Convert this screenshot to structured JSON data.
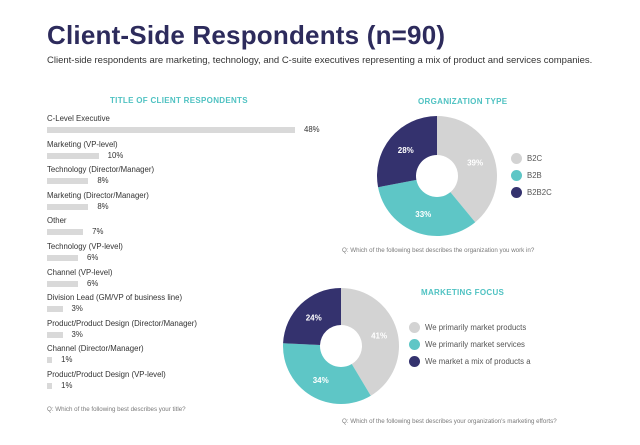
{
  "header": {
    "title": "Client-Side Respondents (n=90)",
    "subtitle": "Client-side respondents are marketing, technology, and C-suite executives representing a mix of product and services companies."
  },
  "colors": {
    "gray": "#d3d3d3",
    "teal": "#5ec6c6",
    "navy": "#34326e",
    "title": "#2d2b5c",
    "accent": "#4fc2c2"
  },
  "chart_data": [
    {
      "type": "bar",
      "title": "TITLE OF CLIENT RESPONDENTS",
      "categories": [
        "C-Level Executive",
        "Marketing (VP-level)",
        "Technology (Director/Manager)",
        "Marketing (Director/Manager)",
        "Other",
        "Technology (VP-level)",
        "Channel (VP-level)",
        "Division Lead (GM/VP of business line)",
        "Product/Product Design (Director/Manager)",
        "Channel (Director/Manager)",
        "Product/Product Design (VP-level)"
      ],
      "values": [
        48,
        10,
        8,
        8,
        7,
        6,
        6,
        3,
        3,
        1,
        1
      ],
      "value_labels": [
        "48%",
        "10%",
        "8%",
        "8%",
        "7%",
        "6%",
        "6%",
        "3%",
        "3%",
        "1%",
        "1%"
      ],
      "xlim": [
        0,
        48
      ],
      "question": "Q: Which of the following best describes your title?"
    },
    {
      "type": "pie",
      "title": "ORGANIZATION TYPE",
      "labels": [
        "B2C",
        "B2B",
        "B2B2C"
      ],
      "values": [
        39,
        33,
        28
      ],
      "value_labels": [
        "39%",
        "33%",
        "28%"
      ],
      "colors": [
        "#d3d3d3",
        "#5ec6c6",
        "#34326e"
      ],
      "legend_position": "right",
      "question": "Q: Which of the following best describes the organization you work in?"
    },
    {
      "type": "pie",
      "title": "MARKETING FOCUS",
      "labels": [
        "We primarily market products",
        "We primarily market services",
        "We market a mix of products a"
      ],
      "values": [
        41,
        34,
        24
      ],
      "value_labels": [
        "41%",
        "34%",
        "24%"
      ],
      "colors": [
        "#d3d3d3",
        "#5ec6c6",
        "#34326e"
      ],
      "legend_position": "right",
      "question": "Q: Which of the following best describes your organization's marketing efforts?"
    }
  ]
}
